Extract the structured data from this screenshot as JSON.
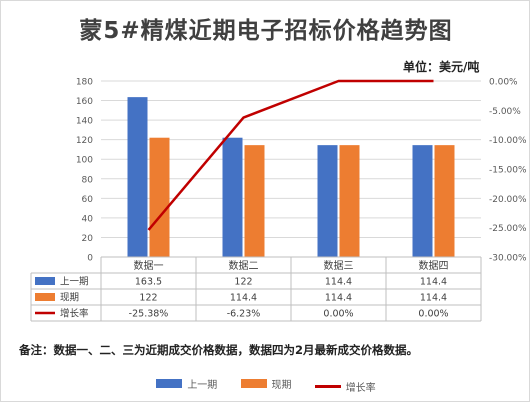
{
  "chart_data": {
    "type": "bar+line",
    "title": "蒙5#精煤近期电子招标价格趋势图",
    "unit_label": "单位：美元/吨",
    "categories": [
      "数据一",
      "数据二",
      "数据三",
      "数据四"
    ],
    "series": [
      {
        "name": "上一期",
        "type": "bar",
        "axis": "left",
        "color": "#4472C4",
        "values": [
          163.5,
          122,
          114.4,
          114.4
        ],
        "labels": [
          "163.5",
          "122",
          "114.4",
          "114.4"
        ]
      },
      {
        "name": "现期",
        "type": "bar",
        "axis": "left",
        "color": "#ED7D31",
        "values": [
          122,
          114.4,
          114.4,
          114.4
        ],
        "labels": [
          "122",
          "114.4",
          "114.4",
          "114.4"
        ]
      },
      {
        "name": "增长率",
        "type": "line",
        "axis": "right",
        "color": "#C00000",
        "values": [
          -25.38,
          -6.23,
          0.0,
          0.0
        ],
        "labels": [
          "-25.38%",
          "-6.23%",
          "0.00%",
          "0.00%"
        ]
      }
    ],
    "left_axis": {
      "min": 0,
      "max": 180,
      "ticks": [
        "0",
        "20",
        "40",
        "60",
        "80",
        "100",
        "120",
        "140",
        "160",
        "180"
      ]
    },
    "right_axis": {
      "min": -30,
      "max": 0,
      "ticks": [
        "0.00%",
        "-5.00%",
        "-10.00%",
        "-15.00%",
        "-20.00%",
        "-25.00%",
        "-30.00%"
      ]
    },
    "data_table": true,
    "legend_position": "bottom",
    "note": "备注：数据一、二、三为近期成交价格数据，数据四为2月最新成交价格数据。"
  }
}
